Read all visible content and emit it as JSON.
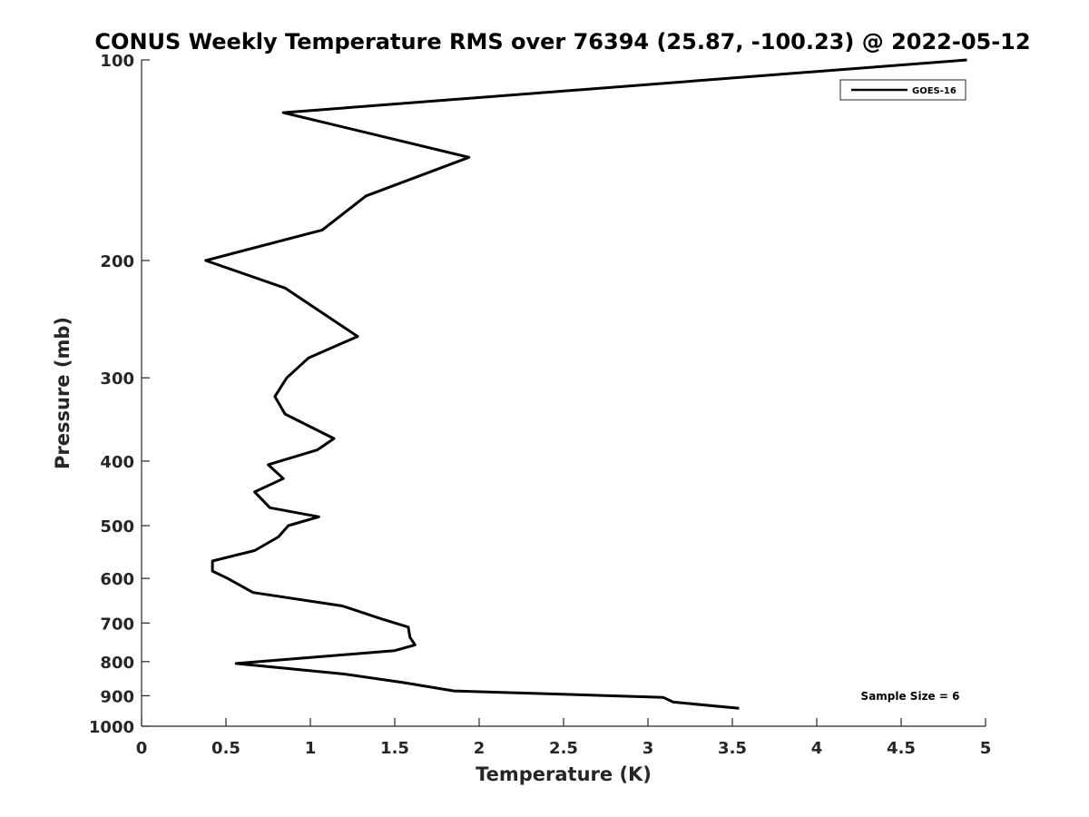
{
  "chart_data": {
    "type": "line",
    "title": "CONUS Weekly Temperature RMS over 76394 (25.87, -100.23) @ 2022-05-12",
    "xlabel": "Temperature (K)",
    "ylabel": "Pressure (mb)",
    "xlim": [
      0,
      5
    ],
    "ylim": [
      1000,
      100
    ],
    "yscale": "log",
    "y_reversed": true,
    "grid": false,
    "legend_position": "top-right",
    "xticks": [
      0,
      0.5,
      1,
      1.5,
      2,
      2.5,
      3,
      3.5,
      4,
      4.5,
      5
    ],
    "xtick_labels": [
      "0",
      "0.5",
      "1",
      "1.5",
      "2",
      "2.5",
      "3",
      "3.5",
      "4",
      "4.5",
      "5"
    ],
    "yticks": [
      100,
      200,
      300,
      400,
      500,
      600,
      700,
      800,
      900,
      1000
    ],
    "ytick_labels": [
      "100",
      "200",
      "300",
      "400",
      "500",
      "600",
      "700",
      "800",
      "900",
      "1000"
    ],
    "annotation": "Sample Size = 6",
    "colors": {
      "line": "#000000",
      "axis": "#262626"
    },
    "series": [
      {
        "name": "GOES-16",
        "x": [
          4.89,
          0.84,
          1.94,
          1.33,
          1.07,
          0.38,
          0.85,
          1.28,
          0.99,
          0.86,
          0.79,
          0.85,
          1.14,
          1.04,
          0.75,
          0.84,
          0.67,
          0.76,
          1.05,
          0.87,
          0.81,
          0.67,
          0.42,
          0.42,
          0.51,
          0.66,
          1.19,
          1.42,
          1.58,
          1.59,
          1.62,
          1.5,
          1.1,
          0.56,
          1.2,
          1.55,
          1.85,
          3.09,
          3.15,
          3.54
        ],
        "y": [
          100,
          120,
          140,
          160,
          180,
          200,
          220,
          260,
          280,
          300,
          320,
          340,
          370,
          385,
          405,
          425,
          445,
          470,
          485,
          500,
          520,
          545,
          565,
          585,
          600,
          630,
          660,
          690,
          710,
          735,
          755,
          770,
          785,
          805,
          835,
          860,
          885,
          905,
          920,
          940
        ]
      }
    ]
  }
}
